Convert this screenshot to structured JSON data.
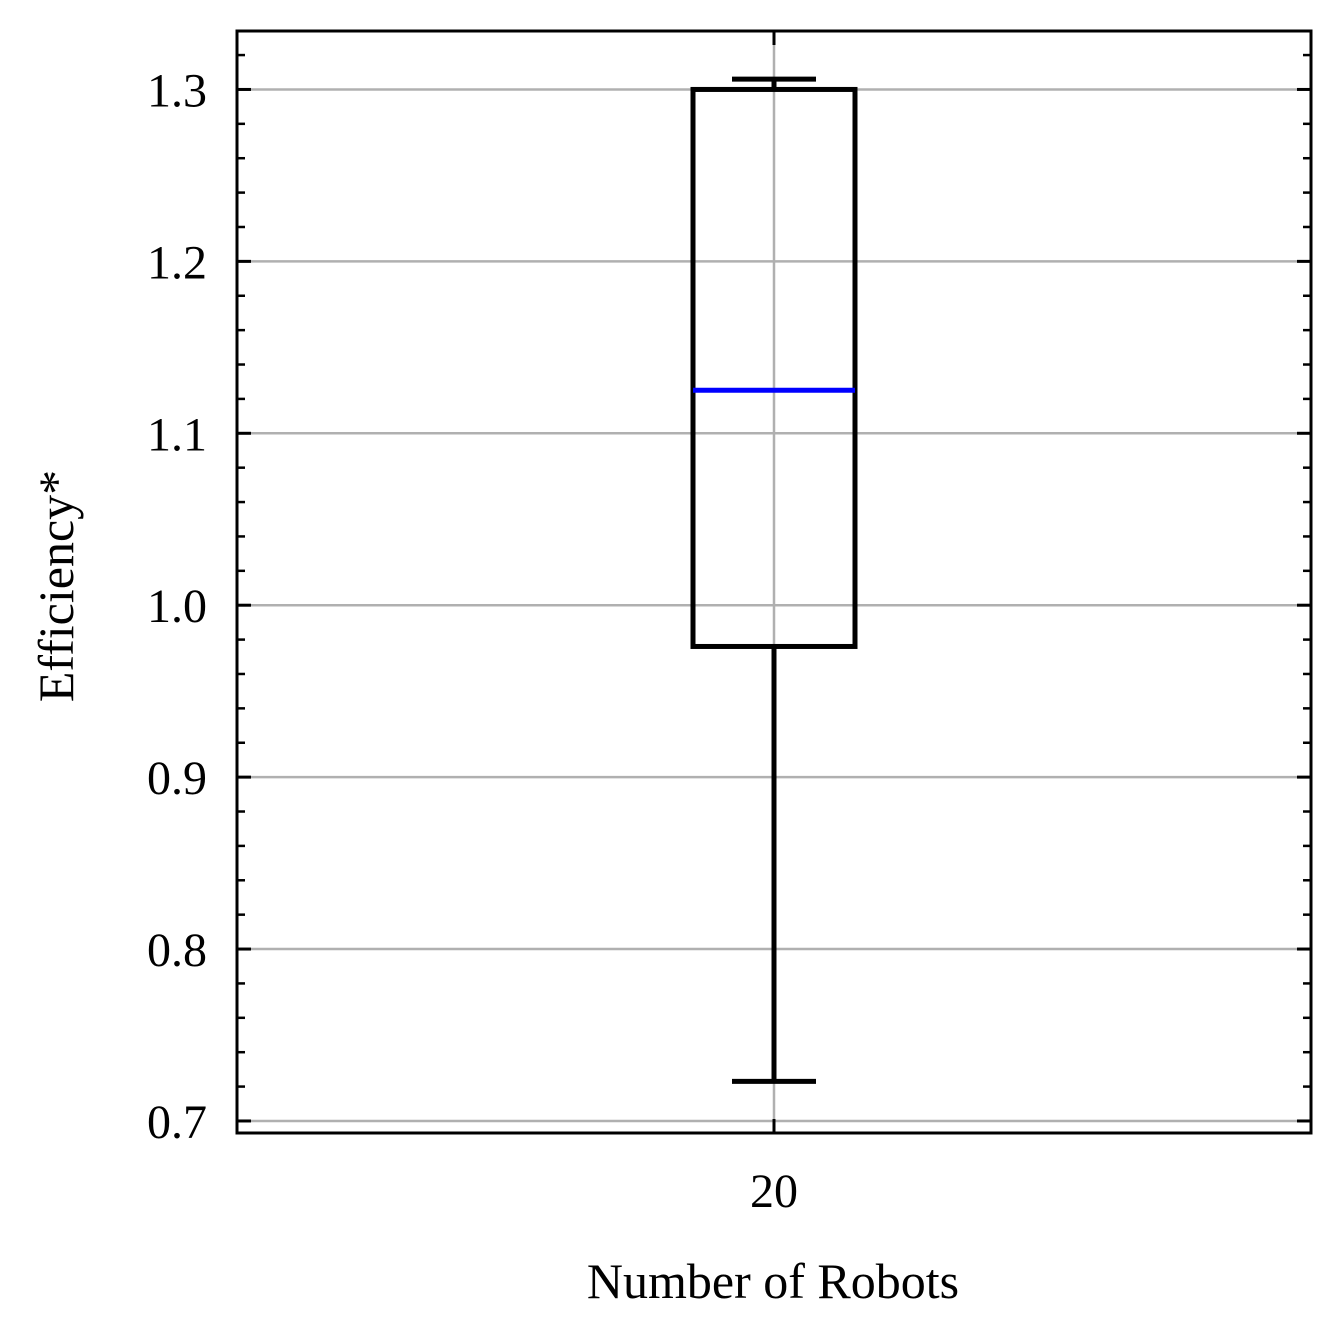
{
  "chart_data": {
    "type": "box",
    "xlabel": "Number of Robots",
    "ylabel": "Efficiency*",
    "categories": [
      "20"
    ],
    "yticks": [
      "0.7",
      "0.8",
      "0.9",
      "1.0",
      "1.1",
      "1.2",
      "1.3"
    ],
    "ylim": [
      0.693,
      1.334
    ],
    "grid": true,
    "boxes": [
      {
        "category": "20",
        "whisker_low": 0.723,
        "q1": 0.976,
        "median": 1.125,
        "q3": 1.3,
        "whisker_high": 1.306
      }
    ],
    "colors": {
      "box": "#000000",
      "median": "#0000ff",
      "grid": "#b0b0b0"
    }
  }
}
